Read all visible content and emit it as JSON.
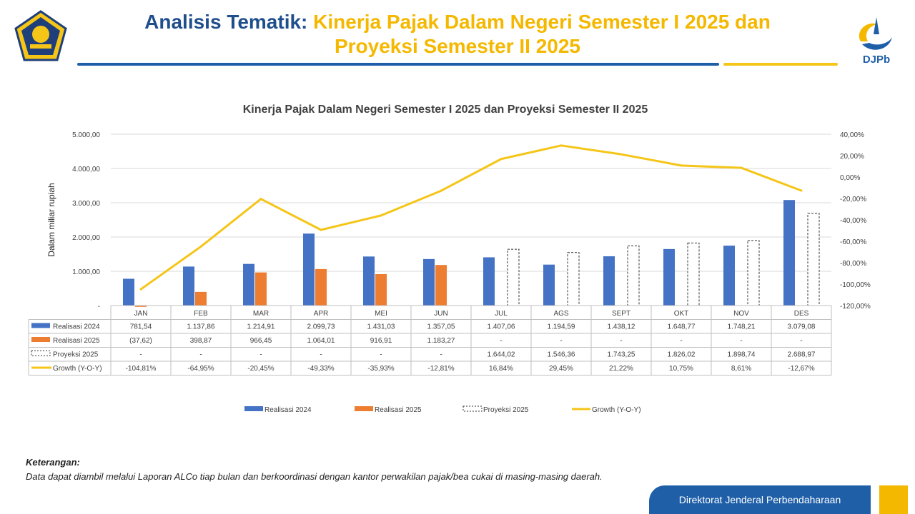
{
  "header": {
    "title_part1": "Analisis Tematik:",
    "title_part2": "Kinerja Pajak Dalam Negeri Semester I 2025 dan",
    "title_line2": "Proyeksi Semester II 2025",
    "logo_right_text": "DJPb"
  },
  "chart_data": {
    "type": "bar",
    "title": "Kinerja Pajak Dalam Negeri Semester I 2025 dan Proyeksi Semester II 2025",
    "ylabel": "Dalam miliar rupiah",
    "ylim": [
      0,
      5000
    ],
    "y_ticks": [
      "-",
      "1.000,00",
      "2.000,00",
      "3.000,00",
      "4.000,00",
      "5.000,00"
    ],
    "y2lim": [
      -120,
      40
    ],
    "y2_ticks": [
      "-120,00%",
      "-100,00%",
      "-80,00%",
      "-60,00%",
      "-40,00%",
      "-20,00%",
      "0,00%",
      "20,00%",
      "40,00%"
    ],
    "categories": [
      "JAN",
      "FEB",
      "MAR",
      "APR",
      "MEI",
      "JUN",
      "JUL",
      "AGS",
      "SEPT",
      "OKT",
      "NOV",
      "DES"
    ],
    "series": [
      {
        "name": "Realisasi 2024",
        "kind": "bar",
        "color": "#4472c4",
        "values": [
          781.54,
          1137.86,
          1214.91,
          2099.73,
          1431.03,
          1357.05,
          1407.06,
          1194.59,
          1438.12,
          1648.77,
          1748.21,
          3079.08
        ],
        "labels": [
          "781,54",
          "1.137,86",
          "1.214,91",
          "2.099,73",
          "1.431,03",
          "1.357,05",
          "1.407,06",
          "1.194,59",
          "1.438,12",
          "1.648,77",
          "1.748,21",
          "3.079,08"
        ]
      },
      {
        "name": "Realisasi 2025",
        "kind": "bar",
        "color": "#ed7d31",
        "values": [
          -37.62,
          398.87,
          966.45,
          1064.01,
          916.91,
          1183.27,
          null,
          null,
          null,
          null,
          null,
          null
        ],
        "labels": [
          "(37,62)",
          "398,87",
          "966,45",
          "1.064,01",
          "916,91",
          "1.183,27",
          "-",
          "-",
          "-",
          "-",
          "-",
          "-"
        ]
      },
      {
        "name": "Proyeksi 2025",
        "kind": "bar-dashed",
        "color": "#333333",
        "values": [
          null,
          null,
          null,
          null,
          null,
          null,
          1644.02,
          1546.36,
          1743.25,
          1826.02,
          1898.74,
          2688.97
        ],
        "labels": [
          "-",
          "-",
          "-",
          "-",
          "-",
          "-",
          "1.644,02",
          "1.546,36",
          "1.743,25",
          "1.826,02",
          "1.898,74",
          "2.688,97"
        ]
      },
      {
        "name": "Growth (Y-O-Y)",
        "kind": "line",
        "axis": "secondary",
        "color": "#f5c518",
        "values": [
          -104.81,
          -64.95,
          -20.45,
          -49.33,
          -35.93,
          -12.81,
          16.84,
          29.45,
          21.22,
          10.75,
          8.61,
          -12.67
        ],
        "labels": [
          "-104,81%",
          "-64,95%",
          "-20,45%",
          "-49,33%",
          "-35,93%",
          "-12,81%",
          "16,84%",
          "29,45%",
          "21,22%",
          "10,75%",
          "8,61%",
          "-12,67%"
        ]
      }
    ],
    "grid": true,
    "legend_position": "bottom"
  },
  "note": {
    "heading": "Keterangan:",
    "text": "Data dapat diambil melalui Laporan ALCo tiap bulan dan berkoordinasi dengan kantor perwakilan pajak/bea cukai di masing-masing daerah."
  },
  "footer": {
    "label": "Direktorat Jenderal Perbendaharaan"
  },
  "colors": {
    "brand_blue": "#1f5fa8",
    "brand_gold": "#f5b800"
  }
}
